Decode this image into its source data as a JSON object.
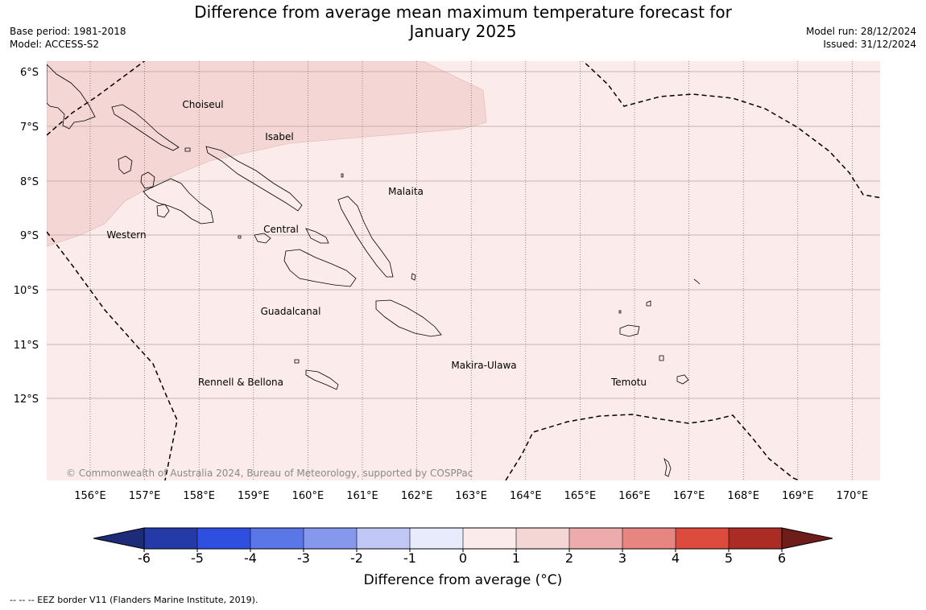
{
  "header": {
    "title_line1": "Difference from average mean maximum temperature forecast for",
    "title_line2": "January 2025",
    "base_period": "Base period: 1981-2018",
    "model": "Model: ACCESS-S2",
    "model_run": "Model run: 28/12/2024",
    "issued": "Issued: 31/12/2024"
  },
  "map": {
    "latitude_labels": [
      "6°S",
      "7°S",
      "8°S",
      "9°S",
      "10°S",
      "11°S",
      "12°S"
    ],
    "longitude_labels": [
      "156°E",
      "157°E",
      "158°E",
      "159°E",
      "160°E",
      "161°E",
      "162°E",
      "163°E",
      "164°E",
      "165°E",
      "166°E",
      "167°E",
      "168°E",
      "169°E",
      "170°E"
    ],
    "province_labels": [
      "Choiseul",
      "Isabel",
      "Malaita",
      "Western",
      "Central",
      "Guadalcanal",
      "Makira-Ulawa",
      "Rennell & Bellona",
      "Temotu"
    ],
    "copyright": "© Commonwealth of Australia 2024, Bureau of Meteorology, supported by COSPPac",
    "anomaly_fill": {
      "0_to_1": "#fbeceb",
      "1_to_2": "#f4d6d4"
    }
  },
  "colorbar": {
    "ticks": [
      "-6",
      "-5",
      "-4",
      "-3",
      "-2",
      "-1",
      "0",
      "1",
      "2",
      "3",
      "4",
      "5",
      "6"
    ],
    "colors": [
      "#243aa6",
      "#2e4fe0",
      "#5b76e6",
      "#8598ed",
      "#c1c8f5",
      "#e8ebfb",
      "#fbeceb",
      "#f4d6d4",
      "#edacab",
      "#e78681",
      "#dd4a3e",
      "#ab2b25"
    ],
    "under_color": "#1e2b78",
    "over_color": "#6e1d1b",
    "label": "Difference from average (°C)"
  },
  "footnote": "--  --  -- EEZ border V11 (Flanders Marine Institute, 2019)."
}
